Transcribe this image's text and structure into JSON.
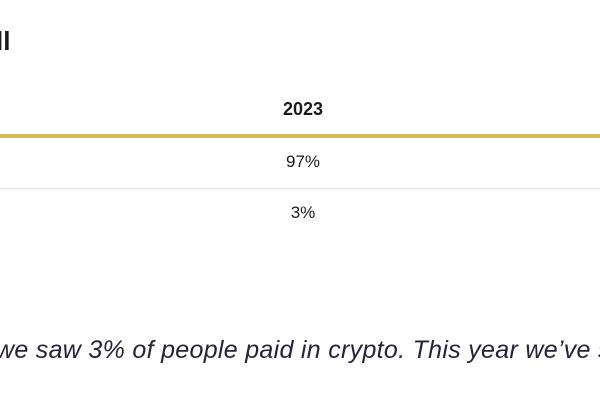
{
  "header": {
    "title": "ll"
  },
  "table": {
    "columns": [
      "2023"
    ],
    "rows": [
      [
        "97%"
      ],
      [
        "3%"
      ]
    ]
  },
  "paragraph": "we saw 3% of people paid in crypto. This year we’ve s"
}
